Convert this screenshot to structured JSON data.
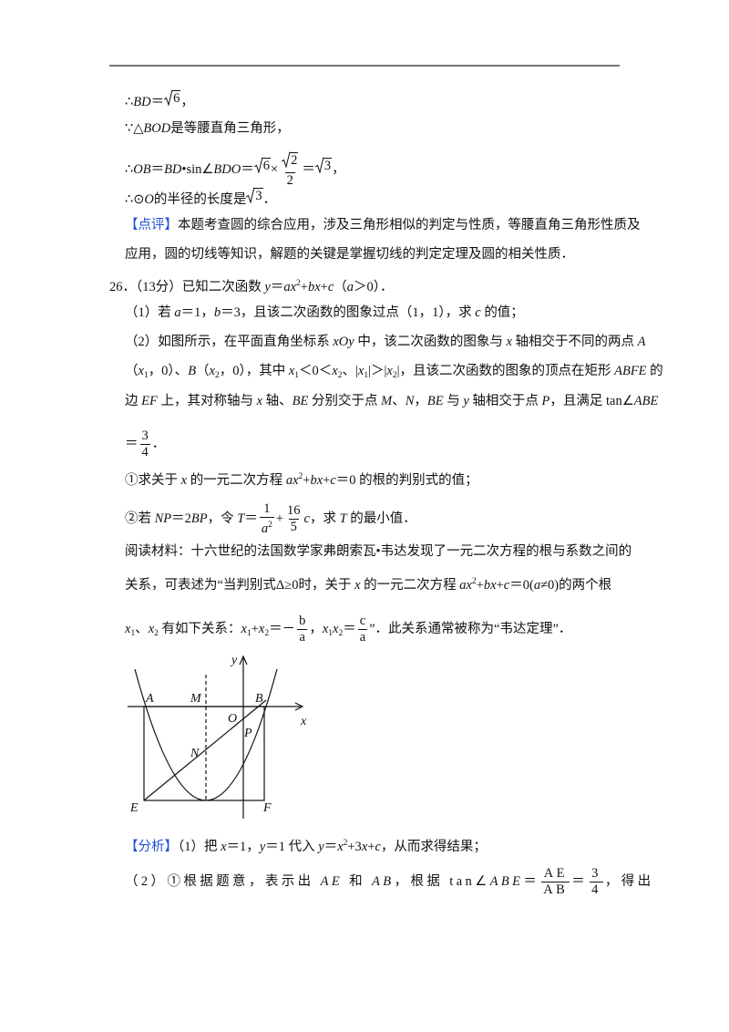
{
  "lines": [
    [
      "∴",
      "BD",
      "＝",
      "6",
      "，"
    ],
    [
      "∵△",
      "BOD",
      "是等腰直角三角形，"
    ],
    [
      "∴",
      "OB",
      "＝",
      "BD",
      "•sin∠",
      "BDO",
      "＝",
      "6",
      "×",
      "2",
      "2",
      "＝",
      "3",
      "，"
    ],
    [
      "∴⊙",
      "O",
      "的半径的长度是",
      "3",
      "．"
    ],
    [
      "【点评】",
      "本题考查圆的综合应用，涉及三角形相似的判定与性质，等腰直角三角形性质及"
    ],
    [
      "应用，圆的切线等知识，解题的关键是掌握切线的判定定理及圆的相关性质．"
    ],
    [
      "26．（13分）已知二次函数 ",
      "y",
      "＝",
      "ax",
      "2",
      "+",
      "bx",
      "+",
      "c",
      "（",
      "a",
      "＞0）．"
    ],
    [
      "（1）若 ",
      "a",
      "＝1，",
      "b",
      "＝3，且该二次函数的图象过点（1，1），求 ",
      "c",
      " 的值；"
    ],
    [
      "（2）如图所示，在平面直角坐标系 ",
      "xOy",
      " 中，该二次函数的图象与 ",
      "x",
      " 轴相交于不同的两点 ",
      "A"
    ],
    [
      "（",
      "x",
      "1",
      "，0）、",
      "B",
      "（",
      "x",
      "2",
      "，0），其中 ",
      "x",
      "1",
      "＜0＜",
      "x",
      "2",
      "、|",
      "x",
      "1",
      "|＞|",
      "x",
      "2",
      "|，且该二次函数的图象的顶点在矩形 ",
      "ABFE",
      " 的"
    ],
    [
      "边 ",
      "EF",
      " 上，其对称轴与 ",
      "x",
      " 轴、",
      "BE",
      " 分别交于点 ",
      "M",
      "、",
      "N",
      "，",
      "BE",
      " 与 ",
      "y",
      " 轴相交于点 ",
      "P",
      "，且满足 tan∠",
      "ABE"
    ],
    [
      "＝",
      "3",
      "4",
      "．"
    ],
    [
      "①求关于 ",
      "x",
      " 的一元二次方程 ",
      "ax",
      "2",
      "+",
      "bx",
      "+",
      "c",
      "＝0 的根的判别式的值；"
    ],
    [
      "②若 ",
      "NP",
      "＝2",
      "BP",
      "，令 ",
      "T",
      "＝",
      "1",
      "a",
      "2",
      "+",
      "16",
      "5",
      "c",
      "，求 ",
      "T",
      " 的最小值．"
    ],
    [
      "阅读材料：十六世纪的法国数学家弗朗索瓦•韦达发现了一元二次方程的根与系数之间的"
    ],
    [
      "关系，可表述为“当判别式Δ≥0时，关于 ",
      "x",
      " 的一元二次方程 ",
      "ax",
      "2",
      "+",
      "bx",
      "+",
      "c",
      "＝0(",
      "a",
      "≠0)的两个根"
    ],
    [
      "x",
      "1",
      "、",
      "x",
      "2",
      " 有如下关系：",
      "x",
      "1",
      "+",
      "x",
      "2",
      "＝－",
      "b",
      "a",
      "，",
      "x",
      "1",
      "x",
      "2",
      "＝",
      "c",
      "a",
      "”．此关系通常被称为“韦达定理”．"
    ],
    [
      "【分析】",
      "（1）把 ",
      "x",
      "＝1，",
      "y",
      "＝1 代入 ",
      "y",
      "＝",
      "x",
      "2",
      "+3",
      "x",
      "+",
      "c",
      "，从而求得结果；"
    ],
    [
      "（2）①根据题意，表示出 ",
      "AE",
      " 和 ",
      "AB",
      "，根据 tan∠",
      "ABE",
      "＝",
      "AE",
      "AB",
      "＝",
      "3",
      "4",
      "，得出"
    ]
  ],
  "figure": {
    "labels": [
      "y",
      "A",
      "M",
      "B",
      "x",
      "O",
      "P",
      "N",
      "E",
      "F"
    ]
  }
}
